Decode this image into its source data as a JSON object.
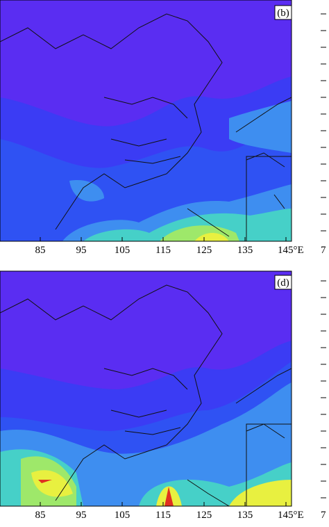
{
  "panels": [
    {
      "label": "(b)",
      "x_labels": [
        "85",
        "95",
        "105",
        "115",
        "125",
        "135",
        "145°E"
      ],
      "next_panel_fragment": "7"
    },
    {
      "label": "(d)",
      "x_labels": [
        "85",
        "95",
        "105",
        "115",
        "125",
        "135",
        "145°E"
      ],
      "next_panel_fragment": "7"
    }
  ]
}
